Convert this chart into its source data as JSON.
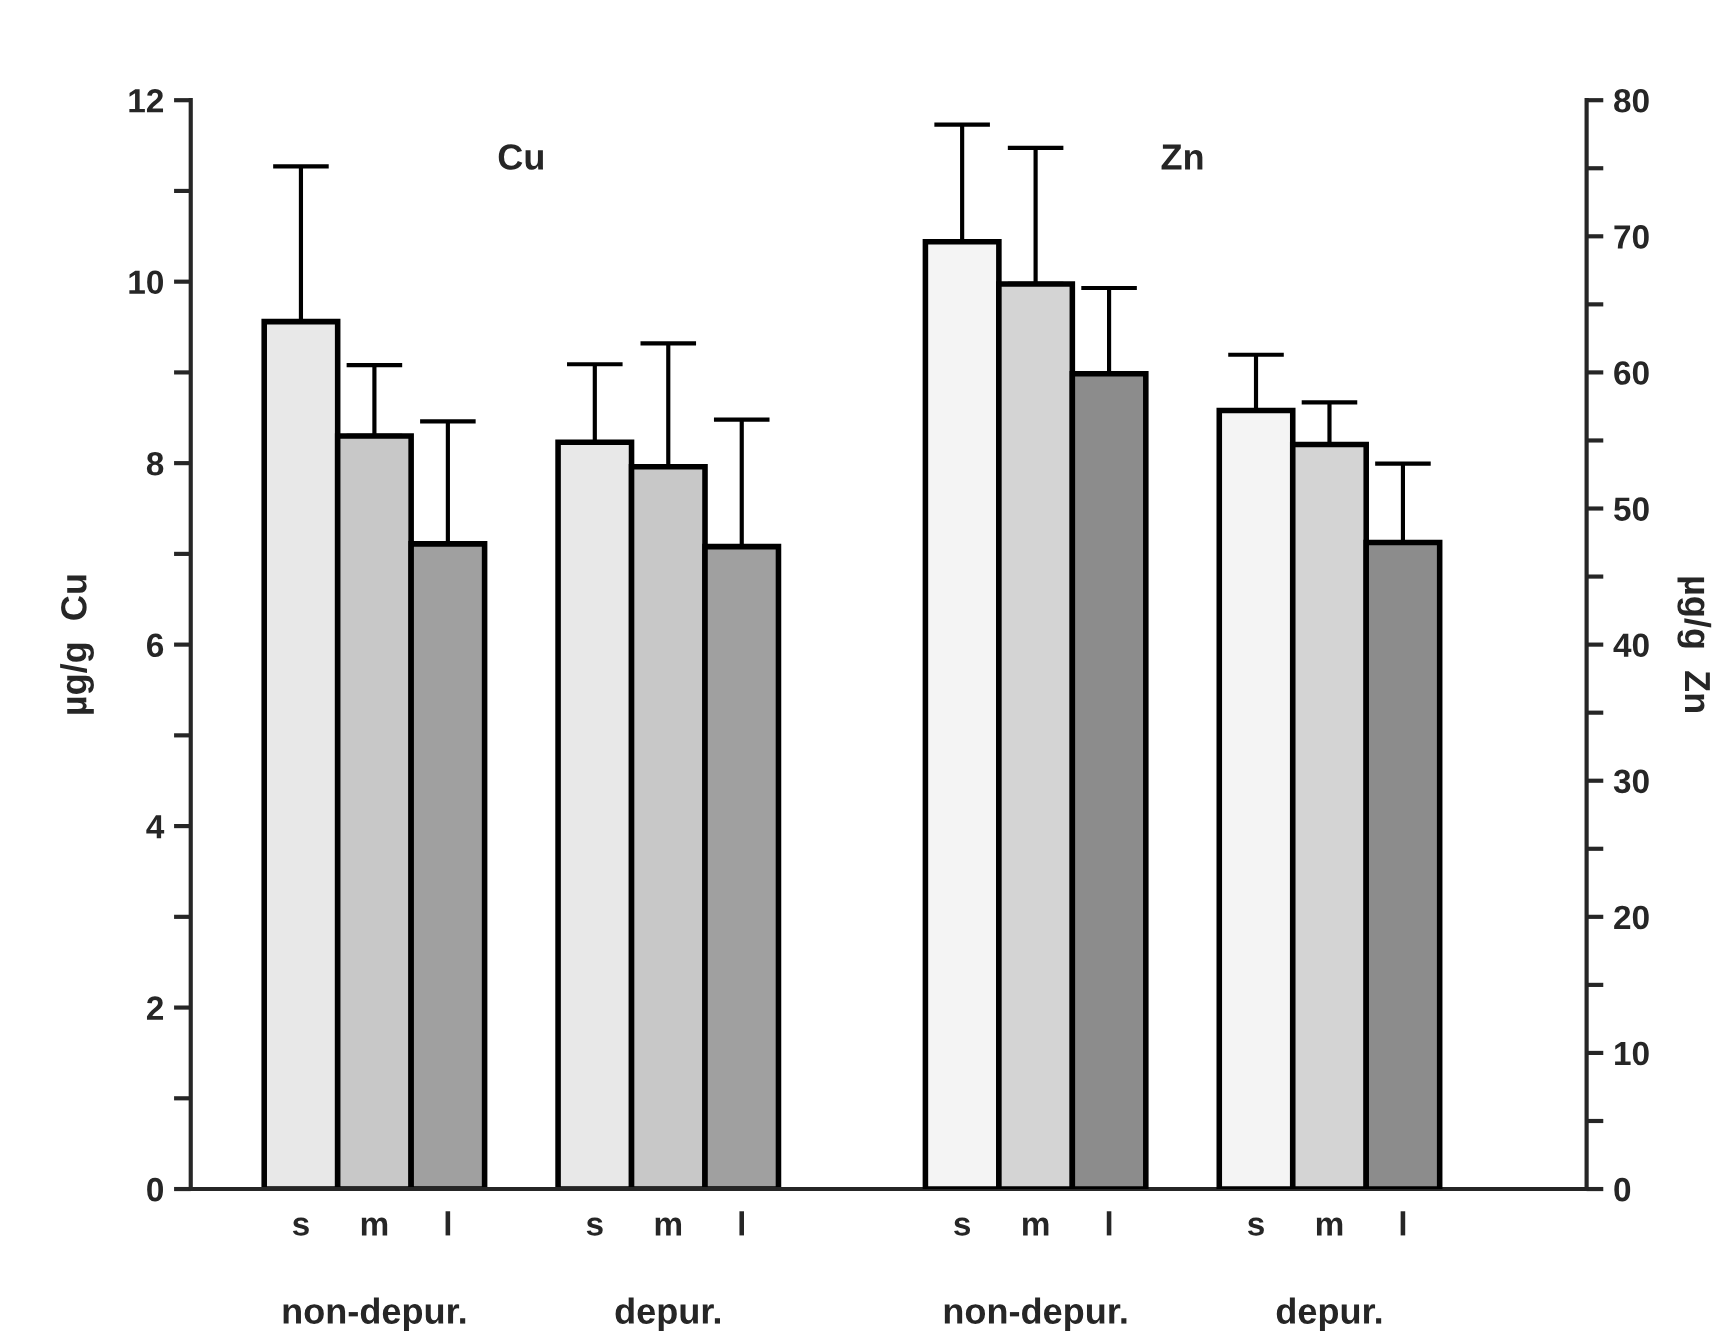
{
  "chart_data": {
    "type": "bar",
    "categories": [
      null,
      "s",
      "m",
      "l",
      null,
      "s",
      "m",
      "l",
      null,
      null,
      "s",
      "m",
      "l",
      null,
      "s",
      "m",
      "l",
      null,
      null
    ],
    "series": [
      {
        "axis": "y",
        "values": [
          null,
          9.56,
          8.3,
          7.11,
          null,
          8.23,
          7.96,
          7.08,
          null,
          null,
          null,
          null,
          null,
          null,
          null,
          null,
          null,
          null,
          null
        ],
        "colors": [
          null,
          "#e8e8e8",
          "#c8c8c8",
          "#a0a0a0",
          null,
          "#e8e8e8",
          "#c8c8c8",
          "#a0a0a0",
          null,
          null,
          null,
          null,
          null,
          null,
          null,
          null,
          null,
          null,
          null
        ],
        "errors": [
          null,
          [
            9.56,
            11.27
          ],
          [
            8.3,
            9.08
          ],
          [
            7.11,
            8.46
          ],
          null,
          [
            8.23,
            9.09
          ],
          [
            7.96,
            9.32
          ],
          [
            7.08,
            8.48
          ],
          null,
          null,
          null,
          null,
          null,
          null,
          null,
          null,
          null,
          null,
          null
        ]
      },
      {
        "axis": "y2",
        "values": [
          null,
          null,
          null,
          null,
          null,
          null,
          null,
          null,
          null,
          null,
          69.6,
          66.5,
          59.9,
          null,
          57.2,
          54.7,
          47.5,
          null,
          null
        ],
        "colors": [
          null,
          null,
          null,
          null,
          null,
          null,
          null,
          null,
          null,
          null,
          "#f4f4f4",
          "#d4d4d4",
          "#8c8c8c",
          null,
          "#f4f4f4",
          "#d4d4d4",
          "#8c8c8c",
          null,
          null
        ],
        "errors": [
          null,
          null,
          null,
          null,
          null,
          null,
          null,
          null,
          null,
          null,
          [
            69.6,
            78.2
          ],
          [
            66.5,
            76.5
          ],
          [
            59.9,
            66.2
          ],
          null,
          [
            57.2,
            61.3
          ],
          [
            54.7,
            57.8
          ],
          [
            47.5,
            53.3
          ],
          null,
          null
        ]
      }
    ],
    "ylabel": "µg/g  Cu",
    "y2label": "µg/g  Zn",
    "ylim": [
      0,
      12
    ],
    "yticks": [
      0,
      {
        "value": 1,
        "label": null
      },
      2,
      {
        "value": 3,
        "label": null
      },
      4,
      {
        "value": 5,
        "label": null
      },
      6,
      {
        "value": 7,
        "label": null
      },
      8,
      {
        "value": 9,
        "label": null
      },
      10,
      {
        "value": 11,
        "label": null
      },
      12
    ],
    "y2lim": [
      0,
      80
    ],
    "y2ticks": [
      0,
      {
        "value": 5,
        "label": null
      },
      10,
      {
        "value": 15,
        "label": null
      },
      20,
      {
        "value": 25,
        "label": null
      },
      30,
      {
        "value": 35,
        "label": null
      },
      40,
      {
        "value": 45,
        "label": null
      },
      50,
      {
        "value": 55,
        "label": null
      },
      60,
      {
        "value": 65,
        "label": null
      },
      70,
      {
        "value": 75,
        "label": null
      },
      80
    ],
    "annotations": [
      "Cu",
      "Zn",
      "non-depur.",
      "depur.",
      "non-depur.",
      "depur."
    ],
    "grid": false,
    "legend": false
  }
}
